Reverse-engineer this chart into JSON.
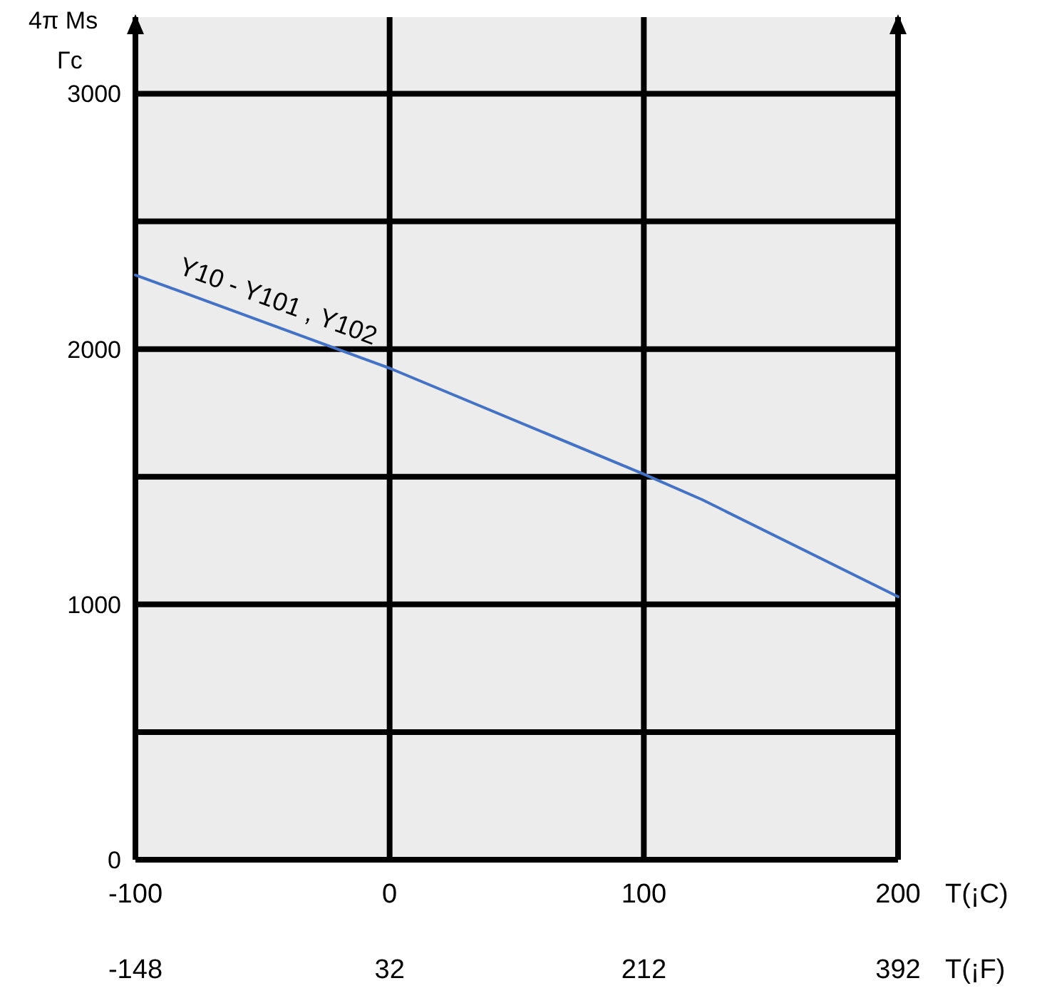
{
  "chart_data": {
    "type": "line",
    "xlabel": "T(¡C)",
    "x2label": "T(¡F)",
    "ylabel": "4π Ms Γc",
    "x": [
      -100,
      0,
      100,
      123,
      200
    ],
    "series": [
      {
        "color": "#4472c4",
        "values": [
          2290,
          1925,
          1510,
          1410,
          1030
        ]
      }
    ],
    "xlim": [
      -100,
      200
    ],
    "xticks": [
      -100,
      0,
      100,
      200
    ],
    "x2lim": [
      -148,
      392
    ],
    "x2ticks": [
      -148,
      32,
      212,
      392
    ],
    "ylim": [
      0,
      3300
    ],
    "yticks": [
      0,
      {
        "value": 500,
        "label": null
      },
      1000,
      {
        "value": 1500,
        "label": null
      },
      2000,
      {
        "value": 2500,
        "label": null
      },
      3000
    ],
    "grid": true,
    "annotations": [
      "Y10 - Y101 , Y102"
    ]
  }
}
